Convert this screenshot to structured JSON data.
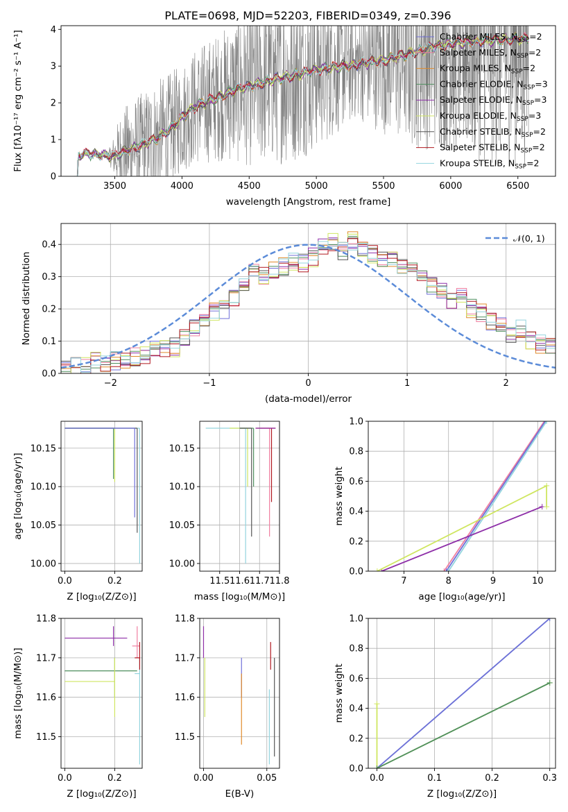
{
  "figure": {
    "title": "PLATE=0698, MJD=52203, FIBERID=0349, z=0.396"
  },
  "colors": {
    "Chabrier MILES": "#6f6fd8",
    "Salpeter MILES": "#f07fa0",
    "Kroupa MILES": "#e08a2a",
    "Chabrier ELODIE": "#4e8e5e",
    "Salpeter ELODIE": "#8e2fa8",
    "Kroupa ELODIE": "#cfe660",
    "Chabrier STELIB": "#555555",
    "Salpeter STELIB": "#b0171f",
    "Kroupa STELIB": "#93d4de",
    "data": "#808080",
    "gaussian": "#5b8bd8"
  },
  "chart_data": [
    {
      "id": "spectrum",
      "type": "line",
      "xlabel": "wavelength [Angstrom, rest frame]",
      "ylabel": "Flux [fλ10⁻¹⁷ erg cm⁻² s⁻¹ A⁻¹]",
      "xlim": [
        3100,
        6780
      ],
      "ylim": [
        0,
        4.1
      ],
      "xticks": [
        3500,
        4000,
        4500,
        5000,
        5500,
        6000,
        6500
      ],
      "yticks": [
        0,
        1,
        2,
        3,
        4
      ],
      "legend_loc": "upper right",
      "legend": [
        {
          "label": "Chabrier MILES, N",
          "sub": "SSP",
          "suffix": "=2",
          "series": "Chabrier MILES"
        },
        {
          "label": "Salpeter MILES, N",
          "sub": "SSP",
          "suffix": "=2",
          "series": "Salpeter MILES"
        },
        {
          "label": "Kroupa MILES, N",
          "sub": "SSP",
          "suffix": "=2",
          "series": "Kroupa MILES"
        },
        {
          "label": "Chabrier ELODIE, N",
          "sub": "SSP",
          "suffix": "=3",
          "series": "Chabrier ELODIE"
        },
        {
          "label": "Salpeter ELODIE, N",
          "sub": "SSP",
          "suffix": "=3",
          "series": "Salpeter ELODIE"
        },
        {
          "label": "Kroupa ELODIE, N",
          "sub": "SSP",
          "suffix": "=3",
          "series": "Kroupa ELODIE"
        },
        {
          "label": "Chabrier STELIB, N",
          "sub": "SSP",
          "suffix": "=2",
          "series": "Chabrier STELIB"
        },
        {
          "label": "Salpeter STELIB, N",
          "sub": "SSP",
          "suffix": "=2",
          "series": "Salpeter STELIB"
        },
        {
          "label": "Kroupa STELIB, N",
          "sub": "SSP",
          "suffix": "=2",
          "series": "Kroupa STELIB"
        }
      ],
      "model_trend": [
        [
          3200,
          0.0
        ],
        [
          3230,
          0.55
        ],
        [
          3300,
          0.62
        ],
        [
          3400,
          0.58
        ],
        [
          3500,
          0.55
        ],
        [
          3600,
          0.72
        ],
        [
          3700,
          0.85
        ],
        [
          3800,
          1.0
        ],
        [
          3900,
          1.25
        ],
        [
          4000,
          1.6
        ],
        [
          4100,
          1.9
        ],
        [
          4200,
          2.05
        ],
        [
          4300,
          2.2
        ],
        [
          4400,
          2.35
        ],
        [
          4500,
          2.45
        ],
        [
          4600,
          2.55
        ],
        [
          4700,
          2.65
        ],
        [
          4800,
          2.72
        ],
        [
          4900,
          2.8
        ],
        [
          5000,
          2.9
        ],
        [
          5100,
          2.95
        ],
        [
          5200,
          3.0
        ],
        [
          5300,
          3.05
        ],
        [
          5400,
          3.1
        ],
        [
          5500,
          3.15
        ],
        [
          5600,
          3.25
        ],
        [
          5700,
          3.35
        ],
        [
          5800,
          3.45
        ],
        [
          5900,
          3.55
        ],
        [
          6000,
          3.6
        ],
        [
          6100,
          3.65
        ],
        [
          6200,
          3.68
        ],
        [
          6300,
          3.7
        ],
        [
          6400,
          3.72
        ],
        [
          6500,
          3.74
        ],
        [
          6580,
          3.75
        ]
      ],
      "data_noise_by_wavelength": [
        [
          3200,
          0.05
        ],
        [
          3450,
          0.1
        ],
        [
          3550,
          1.2
        ],
        [
          3800,
          1.6
        ],
        [
          4000,
          1.5
        ],
        [
          4300,
          1.8
        ],
        [
          4500,
          2.2
        ],
        [
          4800,
          2.4
        ],
        [
          5000,
          2.2
        ],
        [
          5300,
          1.5
        ],
        [
          5500,
          2.0
        ],
        [
          5700,
          2.6
        ],
        [
          6000,
          3.0
        ],
        [
          6300,
          3.5
        ],
        [
          6600,
          3.5
        ]
      ]
    },
    {
      "id": "residuals",
      "type": "line",
      "xlabel": "(data-model)/error",
      "ylabel": "Normed distribution",
      "xlim": [
        -2.5,
        2.5
      ],
      "ylim": [
        0,
        0.465
      ],
      "xticks": [
        -2,
        -1,
        0,
        1,
        2
      ],
      "yticks": [
        0.0,
        0.1,
        0.2,
        0.3,
        0.4
      ],
      "grid": true,
      "legend_loc": "upper right",
      "legend": [
        {
          "label": "𝒩(0, 1)",
          "series": "gaussian"
        }
      ],
      "hist_x": [
        -2.5,
        -2.4,
        -2.3,
        -2.2,
        -2.1,
        -2.0,
        -1.9,
        -1.8,
        -1.7,
        -1.6,
        -1.5,
        -1.4,
        -1.3,
        -1.2,
        -1.1,
        -1.0,
        -0.9,
        -0.8,
        -0.7,
        -0.6,
        -0.5,
        -0.4,
        -0.3,
        -0.2,
        -0.1,
        0.0,
        0.1,
        0.2,
        0.3,
        0.4,
        0.5,
        0.6,
        0.7,
        0.8,
        0.9,
        1.0,
        1.1,
        1.2,
        1.3,
        1.4,
        1.5,
        1.6,
        1.7,
        1.8,
        1.9,
        2.0,
        2.1,
        2.2,
        2.3,
        2.4
      ],
      "hist_base": [
        0.015,
        0.02,
        0.02,
        0.04,
        0.035,
        0.04,
        0.045,
        0.05,
        0.06,
        0.07,
        0.075,
        0.08,
        0.11,
        0.14,
        0.17,
        0.19,
        0.2,
        0.23,
        0.28,
        0.32,
        0.3,
        0.32,
        0.33,
        0.35,
        0.34,
        0.36,
        0.39,
        0.41,
        0.38,
        0.41,
        0.39,
        0.37,
        0.36,
        0.35,
        0.33,
        0.32,
        0.31,
        0.27,
        0.26,
        0.22,
        0.24,
        0.2,
        0.19,
        0.16,
        0.15,
        0.12,
        0.14,
        0.1,
        0.09,
        0.08
      ]
    },
    {
      "id": "age-vs-metallicity",
      "type": "line",
      "xlabel": "Z [log₁₀(Z/Z⊙)]",
      "ylabel": "age  [log₁₀(age/yr)]",
      "xlim": [
        -0.015,
        0.31
      ],
      "ylim": [
        9.99,
        10.185
      ],
      "xticks": [
        0.0,
        0.2
      ],
      "yticks": [
        10.0,
        10.05,
        10.1,
        10.15
      ],
      "grid": true,
      "bars": [
        {
          "series": "Kroupa ELODIE",
          "x1": 0.0,
          "x2": 0.2,
          "y": 10.176,
          "xv": 0.2,
          "y1": 10.106
        },
        {
          "series": "Chabrier ELODIE",
          "x1": 0.0,
          "x2": 0.2,
          "y": 10.176,
          "xv": 0.195,
          "y1": 10.11
        },
        {
          "series": "Kroupa STELIB",
          "x1": 0.0,
          "x2": 0.3,
          "y": 10.176,
          "xv": 0.3,
          "y1": 10.0
        },
        {
          "series": "Chabrier STELIB",
          "x1": 0.0,
          "x2": 0.29,
          "y": 10.176,
          "xv": 0.29,
          "y1": 10.04
        },
        {
          "series": "Chabrier MILES",
          "x1": 0.0,
          "x2": 0.28,
          "y": 10.176,
          "xv": 0.28,
          "y1": 10.06
        }
      ]
    },
    {
      "id": "age-vs-mass",
      "type": "line",
      "xlabel": "mass [log₁₀(M/M⊙)]",
      "xlim": [
        11.4,
        11.8
      ],
      "ylim": [
        9.99,
        10.185
      ],
      "xticks": [
        11.5,
        11.6,
        11.7,
        11.8
      ],
      "xticklabels": [
        "11.5",
        "11.6",
        "11.7",
        "11.8"
      ],
      "yticks": [
        10.0,
        10.05,
        10.1,
        10.15
      ],
      "grid": true,
      "bars": [
        {
          "series": "Kroupa STELIB",
          "x1": 11.43,
          "x2": 11.63,
          "y": 10.176,
          "xv": 11.63,
          "y1": 10.0
        },
        {
          "series": "Kroupa ELODIE",
          "x1": 11.55,
          "x2": 11.64,
          "y": 10.176,
          "xv": 11.64,
          "y1": 10.1
        },
        {
          "series": "Chabrier ELODIE",
          "x1": 11.6,
          "x2": 11.67,
          "y": 10.176,
          "xv": 11.67,
          "y1": 10.1
        },
        {
          "series": "Chabrier STELIB",
          "x1": 11.6,
          "x2": 11.66,
          "y": 10.176,
          "xv": 11.66,
          "y1": 10.035
        },
        {
          "series": "Salpeter MILES",
          "x1": 11.7,
          "x2": 11.75,
          "y": 10.176,
          "xv": 11.75,
          "y1": 10.035
        },
        {
          "series": "Salpeter STELIB",
          "x1": 11.68,
          "x2": 11.78,
          "y": 10.176,
          "xv": 11.76,
          "y1": 10.08
        },
        {
          "series": "Salpeter ELODIE",
          "x1": 11.68,
          "x2": 11.78,
          "y": 10.176,
          "xv": 11.78,
          "y1": 10.176
        }
      ]
    },
    {
      "id": "mass-weight-vs-age",
      "type": "line",
      "xlabel": "age  [log₁₀(age/yr)]",
      "ylabel": "mass weight",
      "xlim": [
        6.2,
        10.4
      ],
      "ylim": [
        0,
        1.0
      ],
      "xticks": [
        7,
        8,
        9,
        10
      ],
      "yticks": [
        0.0,
        0.2,
        0.4,
        0.6,
        0.8,
        1.0
      ],
      "grid": true,
      "lines": [
        {
          "series": "Salpeter MILES",
          "points": [
            [
              7.9,
              0.0
            ],
            [
              10.15,
              1.0
            ]
          ]
        },
        {
          "series": "Chabrier MILES",
          "points": [
            [
              7.95,
              0.0
            ],
            [
              10.17,
              1.0
            ]
          ]
        },
        {
          "series": "Kroupa STELIB",
          "points": [
            [
              8.0,
              0.0
            ],
            [
              10.2,
              1.0
            ]
          ]
        },
        {
          "series": "Salpeter ELODIE",
          "points": [
            [
              6.5,
              0.0
            ],
            [
              10.1,
              0.43
            ]
          ]
        },
        {
          "series": "Kroupa ELODIE",
          "points": [
            [
              6.4,
              0.0
            ],
            [
              10.2,
              0.57
            ],
            [
              10.2,
              0.43
            ]
          ]
        }
      ]
    },
    {
      "id": "mass-vs-metallicity",
      "type": "line",
      "xlabel": "Z [log₁₀(Z/Z⊙)]",
      "ylabel": "mass [log₁₀(M/M⊙)]",
      "xlim": [
        -0.015,
        0.31
      ],
      "ylim": [
        11.42,
        11.8
      ],
      "xticks": [
        0.0,
        0.2
      ],
      "yticks": [
        11.5,
        11.6,
        11.7,
        11.8
      ],
      "grid": true,
      "bars": [
        {
          "series": "Salpeter ELODIE",
          "x1": 0.0,
          "x2": 0.25,
          "y": 11.75,
          "xv": 0.195,
          "y1": 11.78,
          "y2": 11.73
        },
        {
          "series": "Chabrier ELODIE",
          "x1": 0.0,
          "x2": 0.29,
          "y": 11.667,
          "xv": 0.2,
          "y1": 11.7,
          "y2": 11.6
        },
        {
          "series": "Kroupa ELODIE",
          "x1": 0.0,
          "x2": 0.2,
          "y": 11.64,
          "xv": 0.2,
          "y1": 11.7,
          "y2": 11.55
        },
        {
          "series": "Kroupa STELIB",
          "x1": 0.28,
          "x2": 0.3,
          "y": 11.66,
          "xv": 0.3,
          "y1": 11.7,
          "y2": 11.43
        },
        {
          "series": "Salpeter MILES",
          "x1": 0.27,
          "x2": 0.3,
          "y": 11.73,
          "xv": 0.29,
          "y1": 11.78,
          "y2": 11.7
        },
        {
          "series": "Salpeter STELIB",
          "x1": 0.28,
          "x2": 0.3,
          "y": 11.7,
          "xv": 0.3,
          "y1": 11.74,
          "y2": 11.67
        }
      ]
    },
    {
      "id": "mass-vs-ebv",
      "type": "line",
      "xlabel": "E(B-V)",
      "xlim": [
        -0.003,
        0.06
      ],
      "ylim": [
        11.42,
        11.8
      ],
      "xticks": [
        0.0,
        0.05
      ],
      "xticklabels": [
        "0.00",
        "0.05"
      ],
      "yticks": [
        11.5,
        11.6,
        11.7,
        11.8
      ],
      "grid": true,
      "vlines": [
        {
          "series": "Salpeter ELODIE",
          "x": 0.0,
          "y1": 11.7,
          "y2": 11.78
        },
        {
          "series": "Kroupa ELODIE",
          "x": 0.001,
          "y1": 11.55,
          "y2": 11.7
        },
        {
          "series": "Chabrier MILES",
          "x": 0.03,
          "y1": 11.6,
          "y2": 11.7
        },
        {
          "series": "Kroupa MILES",
          "x": 0.03,
          "y1": 11.48,
          "y2": 11.66
        },
        {
          "series": "Kroupa STELIB",
          "x": 0.052,
          "y1": 11.43,
          "y2": 11.62
        },
        {
          "series": "Salpeter STELIB",
          "x": 0.053,
          "y1": 11.67,
          "y2": 11.74
        },
        {
          "series": "Chabrier STELIB",
          "x": 0.056,
          "y1": 11.45,
          "y2": 11.7
        }
      ]
    },
    {
      "id": "mass-weight-vs-metallicity",
      "type": "line",
      "xlabel": "Z [log₁₀(Z/Z⊙)]",
      "ylabel": "mass weight",
      "xlim": [
        -0.015,
        0.31
      ],
      "ylim": [
        0,
        1.0
      ],
      "xticks": [
        0.0,
        0.1,
        0.2,
        0.3
      ],
      "yticks": [
        0.0,
        0.2,
        0.4,
        0.6,
        0.8,
        1.0
      ],
      "grid": true,
      "lines": [
        {
          "series": "Kroupa STELIB",
          "points": [
            [
              0.0,
              0.0
            ],
            [
              0.3,
              1.0
            ]
          ]
        },
        {
          "series": "Chabrier MILES",
          "points": [
            [
              0.0,
              0.0
            ],
            [
              0.3,
              1.0
            ]
          ]
        },
        {
          "series": "Kroupa ELODIE",
          "points": [
            [
              0.0,
              0.43
            ],
            [
              0.0,
              0.0
            ],
            [
              0.3,
              0.57
            ]
          ]
        },
        {
          "series": "Chabrier ELODIE",
          "points": [
            [
              0.0,
              0.0
            ],
            [
              0.3,
              0.57
            ]
          ]
        }
      ]
    }
  ]
}
